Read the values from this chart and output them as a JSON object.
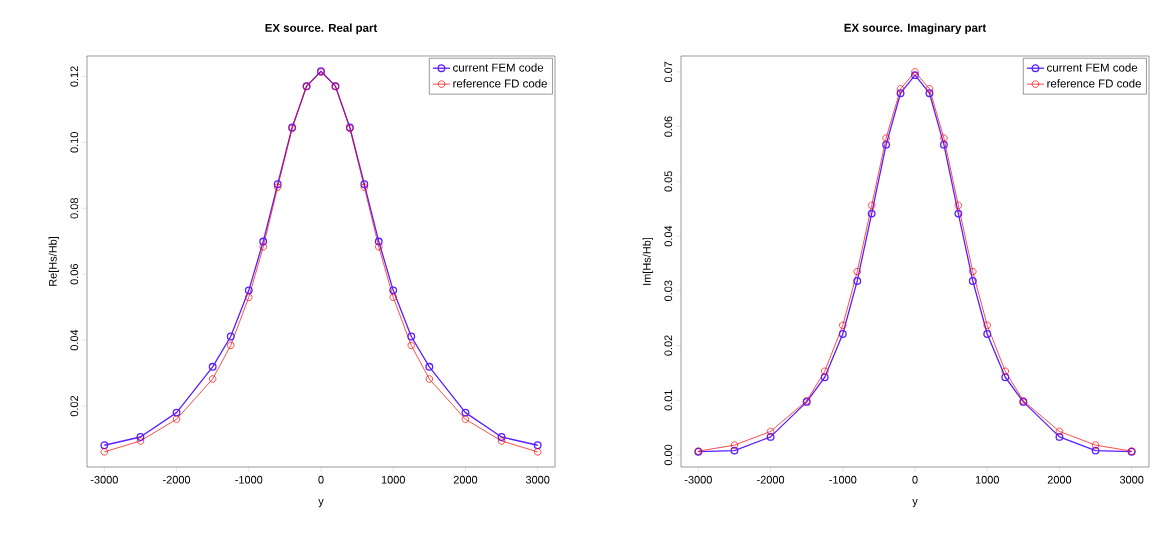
{
  "chart_data": [
    {
      "type": "line",
      "title": "EX source. Real part",
      "xlabel": "y",
      "ylabel": "Re[Hs/Hb]",
      "x": [
        -3000,
        -2500,
        -2000,
        -1500,
        -1250,
        -1000,
        -800,
        -600,
        -400,
        -200,
        0,
        200,
        400,
        600,
        800,
        1000,
        1250,
        1500,
        2000,
        2500,
        3000
      ],
      "series": [
        {
          "name": "current FEM code",
          "color": "#5a1eff",
          "values": [
            0.0081,
            0.0106,
            0.018,
            0.0319,
            0.0411,
            0.0551,
            0.0699,
            0.0873,
            0.1045,
            0.117,
            0.1216,
            0.117,
            0.1045,
            0.0873,
            0.0699,
            0.0551,
            0.0411,
            0.0319,
            0.018,
            0.0106,
            0.0081
          ]
        },
        {
          "name": "reference FD code",
          "color": "#ff0000",
          "values": [
            0.0061,
            0.0094,
            0.016,
            0.0282,
            0.0384,
            0.053,
            0.0683,
            0.0864,
            0.1042,
            0.117,
            0.1213,
            0.117,
            0.1042,
            0.0864,
            0.0683,
            0.053,
            0.0384,
            0.0282,
            0.016,
            0.0094,
            0.0061
          ]
        }
      ],
      "xlim": [
        -3240,
        3240
      ],
      "ylim": [
        0.0015,
        0.1262
      ],
      "xticks": [
        -3000,
        -2000,
        -1000,
        0,
        1000,
        2000,
        3000
      ],
      "yticks": [
        {
          "value": 0.02,
          "label": "0.02"
        },
        {
          "value": 0.04,
          "label": "0.04"
        },
        {
          "value": 0.06,
          "label": "0.06"
        },
        {
          "value": 0.08,
          "label": "0.08"
        },
        {
          "value": 0.1,
          "label": "0.10"
        },
        {
          "value": 0.12,
          "label": "0.12"
        }
      ],
      "legend": "top right",
      "marker": "circle",
      "line_style": "solid"
    },
    {
      "type": "line",
      "title": "EX source. Imaginary part",
      "xlabel": "y",
      "ylabel": "Im[Hs/Hb]",
      "x": [
        -3000,
        -2500,
        -2000,
        -1500,
        -1250,
        -1000,
        -800,
        -600,
        -400,
        -200,
        0,
        200,
        400,
        600,
        800,
        1000,
        1250,
        1500,
        2000,
        2500,
        3000
      ],
      "series": [
        {
          "name": "current FEM code",
          "color": "#5a1eff",
          "values": [
            0.0006,
            0.0008,
            0.0033,
            0.0097,
            0.0142,
            0.0221,
            0.0318,
            0.0441,
            0.0567,
            0.0661,
            0.0694,
            0.0661,
            0.0567,
            0.0441,
            0.0318,
            0.0221,
            0.0142,
            0.0097,
            0.0033,
            0.0008,
            0.0006
          ]
        },
        {
          "name": "reference FD code",
          "color": "#ff0000",
          "values": [
            0.0007,
            0.0018,
            0.0043,
            0.0099,
            0.0153,
            0.0237,
            0.0335,
            0.0456,
            0.0579,
            0.0669,
            0.07,
            0.0669,
            0.0579,
            0.0456,
            0.0335,
            0.0237,
            0.0153,
            0.0099,
            0.0043,
            0.0018,
            0.0007
          ]
        }
      ],
      "xlim": [
        -3240,
        3240
      ],
      "ylim": [
        -0.0022,
        0.0729
      ],
      "xticks": [
        -3000,
        -2000,
        -1000,
        0,
        1000,
        2000,
        3000
      ],
      "yticks": [
        {
          "value": 0.0,
          "label": "0.00"
        },
        {
          "value": 0.01,
          "label": "0.01"
        },
        {
          "value": 0.02,
          "label": "0.02"
        },
        {
          "value": 0.03,
          "label": "0.03"
        },
        {
          "value": 0.04,
          "label": "0.04"
        },
        {
          "value": 0.05,
          "label": "0.05"
        },
        {
          "value": 0.06,
          "label": "0.06"
        },
        {
          "value": 0.07,
          "label": "0.07"
        }
      ],
      "legend": "top right",
      "marker": "circle",
      "line_style": "solid"
    }
  ]
}
